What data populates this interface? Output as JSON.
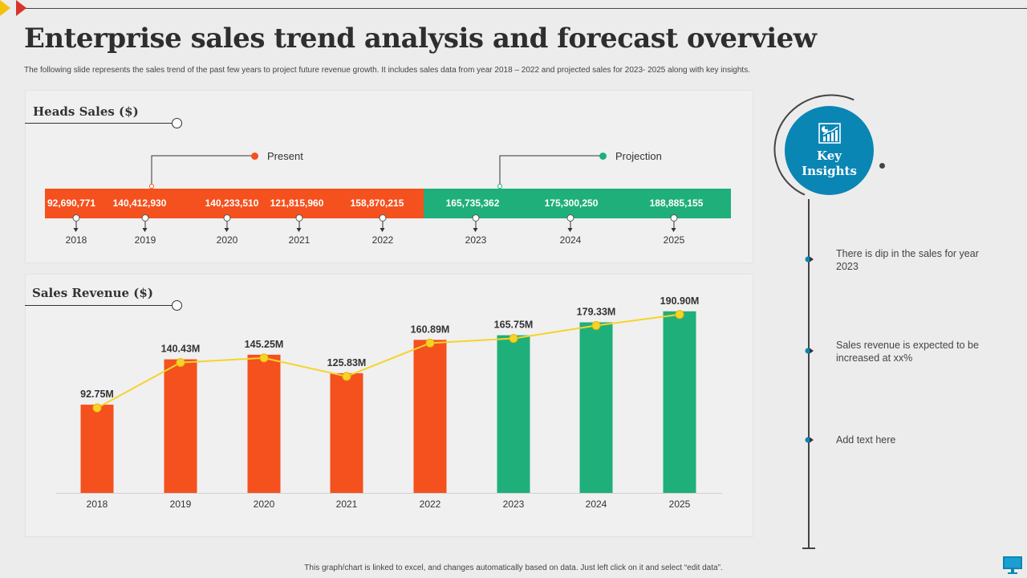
{
  "slide": {
    "title": "Enterprise sales trend analysis and forecast overview",
    "subtitle": "The following slide represents the sales trend of the past few years to project future revenue growth. It includes sales data from year 2018 – 2022 and projected sales for 2023- 2025 along with key insights.",
    "footer": "This graph/chart is linked to excel, and changes automatically based on data. Just left click on it and select “edit data”."
  },
  "heads_sales": {
    "title": "Heads Sales ($)",
    "present_label": "Present",
    "projection_label": "Projection",
    "years": [
      "2018",
      "2019",
      "2020",
      "2021",
      "2022",
      "2023",
      "2024",
      "2025"
    ],
    "values": [
      "92,690,771",
      "140,412,930",
      "140,233,510",
      "121,815,960",
      "158,870,215",
      "165,735,362",
      "175,300,250",
      "188,885,155"
    ]
  },
  "sales_revenue": {
    "title": "Sales Revenue ($)"
  },
  "chart_data": {
    "type": "bar",
    "title": "Sales Revenue ($)",
    "categories": [
      "2018",
      "2019",
      "2020",
      "2021",
      "2022",
      "2023",
      "2024",
      "2025"
    ],
    "series": [
      {
        "name": "Sales Revenue (bars)",
        "values": [
          92.75,
          140.43,
          145.25,
          125.83,
          160.89,
          165.75,
          179.33,
          190.9
        ]
      },
      {
        "name": "Trend (line)",
        "values": [
          92.75,
          140.43,
          145.25,
          125.83,
          160.89,
          165.75,
          179.33,
          190.9
        ]
      }
    ],
    "data_labels": [
      "92.75M",
      "140.43M",
      "145.25M",
      "125.83M",
      "160.89M",
      "165.75M",
      "179.33M",
      "190.90M"
    ],
    "bar_colors": [
      "#f4511e",
      "#f4511e",
      "#f4511e",
      "#f4511e",
      "#f4511e",
      "#1faf7b",
      "#1faf7b",
      "#1faf7b"
    ],
    "line_color": "#f6d32b",
    "ylim": [
      0,
      200
    ],
    "grid": false,
    "xlabel": "",
    "ylabel": ""
  },
  "key_insights": {
    "title": "Key Insights",
    "items": [
      "There is dip in the sales for year 2023",
      "Sales revenue is expected to be increased at xx%",
      "Add text here"
    ]
  },
  "colors": {
    "present": "#f4511e",
    "projection": "#1faf7b",
    "accent": "#0a86b5"
  }
}
